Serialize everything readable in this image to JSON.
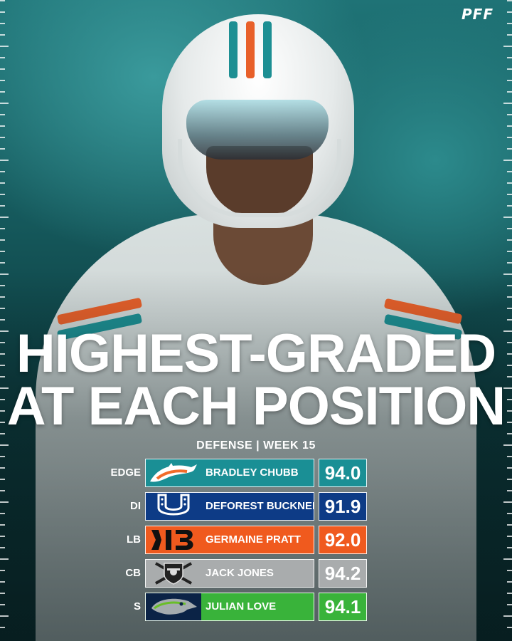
{
  "brand": {
    "logo_text": "PFF"
  },
  "headline": {
    "line1": "HIGHEST-GRADED",
    "line2": "AT EACH POSITION"
  },
  "subtitle": "DEFENSE | WEEK 15",
  "rows": [
    {
      "position": "EDGE",
      "team_icon": "dolphin-icon",
      "player": "BRADLEY CHUBB",
      "grade": "94.0",
      "color": "#1a8f95"
    },
    {
      "position": "DI",
      "team_icon": "horseshoe-icon",
      "player": "DEFOREST BUCKNER",
      "grade": "91.9",
      "color": "#0d3b86"
    },
    {
      "position": "LB",
      "team_icon": "tiger-stripes-icon",
      "player": "GERMAINE PRATT",
      "grade": "92.0",
      "color": "#f05a1e"
    },
    {
      "position": "CB",
      "team_icon": "shield-swords-icon",
      "player": "JACK JONES",
      "grade": "94.2",
      "color": "#a9acad"
    },
    {
      "position": "S",
      "team_icon": "seahawk-icon",
      "player": "JULIAN LOVE",
      "grade": "94.1",
      "color": "#39b33a"
    }
  ]
}
